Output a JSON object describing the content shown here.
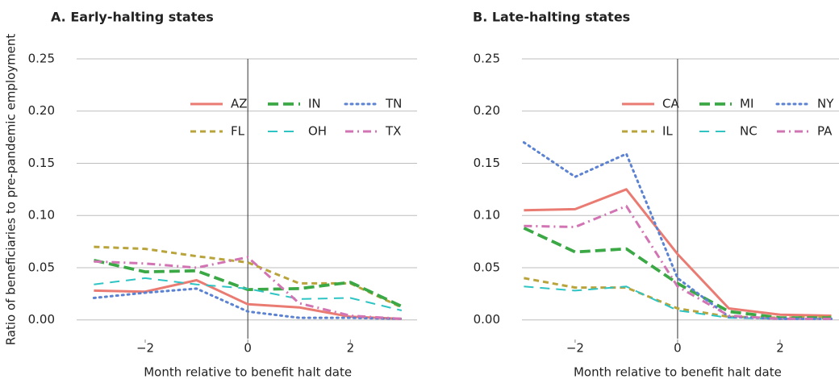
{
  "chart_data": [
    {
      "type": "line",
      "title": "A. Early-halting states",
      "ylabel": "Ratio of beneficiaries to pre-pandemic employment",
      "xlabel": "Month relative to benefit halt date",
      "x": [
        -3,
        -2,
        -1,
        0,
        1,
        2,
        3
      ],
      "xlim": [
        -3.4,
        3.3
      ],
      "ylim": [
        -0.018,
        0.25
      ],
      "xticks": [
        {
          "value": -2,
          "label": "−2"
        },
        0,
        2
      ],
      "yticks": [
        {
          "value": 0,
          "label": "0.00"
        },
        {
          "value": 0.05,
          "label": "0.05"
        },
        {
          "value": 0.1,
          "label": "0.10"
        },
        {
          "value": 0.15,
          "label": "0.15"
        },
        {
          "value": 0.2,
          "label": "0.20"
        },
        {
          "value": 0.25,
          "label": "0.25"
        }
      ],
      "grid": true,
      "vline": 0,
      "legend": "upper right",
      "series": [
        {
          "name": "AZ",
          "color": "#ea7b72",
          "style": "solid",
          "values": [
            0.028,
            0.027,
            0.038,
            0.015,
            0.012,
            0.003,
            0.001
          ]
        },
        {
          "name": "FL",
          "color": "#b9a43c",
          "style": "dashed",
          "values": [
            0.07,
            0.068,
            0.061,
            0.055,
            0.035,
            0.035,
            0.012
          ]
        },
        {
          "name": "IN",
          "color": "#3aa845",
          "style": "longdash",
          "values": [
            0.057,
            0.046,
            0.047,
            0.029,
            0.03,
            0.036,
            0.013
          ]
        },
        {
          "name": "OH",
          "color": "#2ec4c4",
          "style": "thindash",
          "values": [
            0.034,
            0.04,
            0.034,
            0.03,
            0.02,
            0.021,
            0.009
          ]
        },
        {
          "name": "TN",
          "color": "#5c82d2",
          "style": "dotted",
          "values": [
            0.021,
            0.026,
            0.03,
            0.008,
            0.002,
            0.002,
            0.001
          ]
        },
        {
          "name": "TX",
          "color": "#d274b4",
          "style": "dashdot",
          "values": [
            0.056,
            0.054,
            0.05,
            0.06,
            0.016,
            0.004,
            0.001
          ]
        }
      ]
    },
    {
      "type": "line",
      "title": "B. Late-halting states",
      "xlabel": "Month relative to benefit halt date",
      "x": [
        -3,
        -2,
        -1,
        0,
        1,
        2,
        3
      ],
      "xlim": [
        -3.4,
        3.15
      ],
      "ylim": [
        -0.018,
        0.25
      ],
      "xticks": [
        {
          "value": -2,
          "label": "−2"
        },
        0,
        2
      ],
      "yticks": [
        {
          "value": 0,
          "label": "0.00"
        },
        {
          "value": 0.05,
          "label": "0.05"
        },
        {
          "value": 0.1,
          "label": "0.10"
        },
        {
          "value": 0.15,
          "label": "0.15"
        },
        {
          "value": 0.2,
          "label": "0.20"
        },
        {
          "value": 0.25,
          "label": "0.25"
        }
      ],
      "grid": true,
      "vline": 0,
      "legend": "upper right",
      "series": [
        {
          "name": "CA",
          "color": "#ea7b72",
          "style": "solid",
          "values": [
            0.105,
            0.106,
            0.125,
            0.063,
            0.011,
            0.005,
            0.004
          ]
        },
        {
          "name": "IL",
          "color": "#b9a43c",
          "style": "dashed",
          "values": [
            0.04,
            0.031,
            0.031,
            0.011,
            0.003,
            0.002,
            0.003
          ]
        },
        {
          "name": "MI",
          "color": "#3aa845",
          "style": "longdash",
          "values": [
            0.088,
            0.065,
            0.068,
            0.035,
            0.008,
            0.002,
            0.002
          ]
        },
        {
          "name": "NC",
          "color": "#2ec4c4",
          "style": "thindash",
          "values": [
            0.032,
            0.028,
            0.032,
            0.009,
            0.002,
            0.001,
            0.001
          ]
        },
        {
          "name": "NY",
          "color": "#5c82d2",
          "style": "dotted",
          "values": [
            0.17,
            0.137,
            0.159,
            0.04,
            0.003,
            0.001,
            0.001
          ]
        },
        {
          "name": "PA",
          "color": "#d274b4",
          "style": "dashdot",
          "values": [
            0.09,
            0.089,
            0.109,
            0.032,
            0.004,
            0.001,
            0.001
          ]
        }
      ]
    }
  ]
}
